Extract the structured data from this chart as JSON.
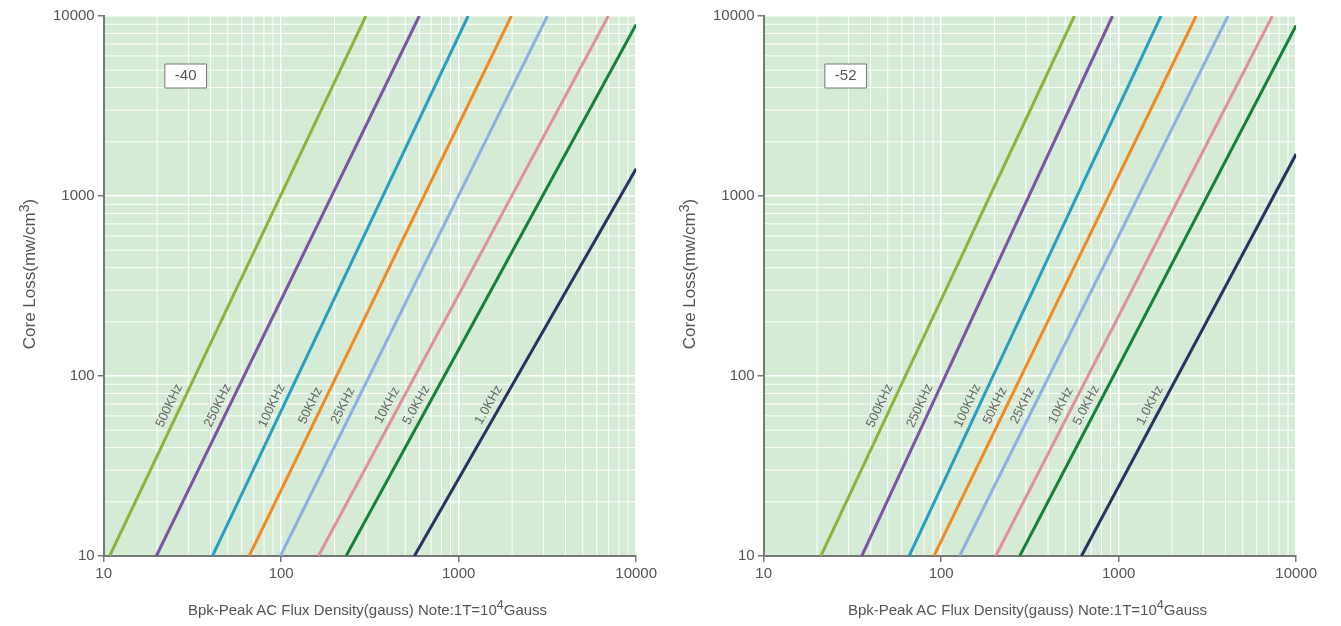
{
  "chart_data": [
    {
      "type": "line",
      "xlabel": "Bpk-Peak AC Flux Density(gauss) Note:1T=10$^{4}$Gauss",
      "ylabel": "Core Loss(mw/cm$^{3}$)",
      "annotations": [
        "-40"
      ],
      "log": "xy",
      "grid": true,
      "legend": false,
      "xlim": [
        10,
        10000
      ],
      "ylim": [
        10,
        10000
      ],
      "xticks": [
        10,
        100,
        1000,
        10000
      ],
      "yticks": [
        10,
        100,
        1000,
        10000
      ],
      "series": [
        {
          "name": "500KHz",
          "color": "#8db33a",
          "x": [
            10.8,
            300
          ],
          "values": [
            10,
            10000
          ]
        },
        {
          "name": "250KHz",
          "color": "#7a55a0",
          "x": [
            19.8,
            600
          ],
          "values": [
            10,
            10000
          ]
        },
        {
          "name": "100KHz",
          "color": "#2a9fc0",
          "x": [
            41,
            1130
          ],
          "values": [
            10,
            10000
          ]
        },
        {
          "name": "50KHz",
          "color": "#f08a24",
          "x": [
            66,
            1980
          ],
          "values": [
            10,
            10000
          ]
        },
        {
          "name": "25KHz",
          "color": "#8cb0e0",
          "x": [
            99,
            3160
          ],
          "values": [
            10,
            10000
          ]
        },
        {
          "name": "10KHz",
          "color": "#e0909a",
          "x": [
            162,
            6970
          ],
          "values": [
            10,
            10000
          ]
        },
        {
          "name": "5.0KHz",
          "color": "#17803a",
          "x": [
            232,
            10000
          ],
          "values": [
            10,
            8980
          ]
        },
        {
          "name": "1.0KHz",
          "color": "#28335f",
          "x": [
            563,
            10000
          ],
          "values": [
            10,
            1416
          ]
        }
      ]
    },
    {
      "type": "line",
      "xlabel": "Bpk-Peak AC Flux Density(gauss) Note:1T=10$^{4}$Gauss",
      "ylabel": "Core Loss(mw/cm$^{3}$)",
      "annotations": [
        "-52"
      ],
      "log": "xy",
      "grid": true,
      "legend": false,
      "xlim": [
        10,
        10000
      ],
      "ylim": [
        10,
        10000
      ],
      "xticks": [
        10,
        100,
        1000,
        10000
      ],
      "yticks": [
        10,
        100,
        1000,
        10000
      ],
      "series": [
        {
          "name": "500KHz",
          "color": "#8db33a",
          "x": [
            21,
            563
          ],
          "values": [
            10,
            10000
          ]
        },
        {
          "name": "250KHz",
          "color": "#7a55a0",
          "x": [
            35.7,
            923
          ],
          "values": [
            10,
            10000
          ]
        },
        {
          "name": "100KHz",
          "color": "#2a9fc0",
          "x": [
            66,
            1730
          ],
          "values": [
            10,
            10000
          ]
        },
        {
          "name": "50KHz",
          "color": "#f08a24",
          "x": [
            91,
            2730
          ],
          "values": [
            10,
            10000
          ]
        },
        {
          "name": "25KHz",
          "color": "#8cb0e0",
          "x": [
            127,
            4130
          ],
          "values": [
            10,
            10000
          ]
        },
        {
          "name": "10KHz",
          "color": "#e0909a",
          "x": [
            203,
            7340
          ],
          "values": [
            10,
            10000
          ]
        },
        {
          "name": "5.0KHz",
          "color": "#17803a",
          "x": [
            277,
            10000
          ],
          "values": [
            10,
            8870
          ]
        },
        {
          "name": "1.0KHz",
          "color": "#28335f",
          "x": [
            617,
            10000
          ],
          "values": [
            10,
            1710
          ]
        }
      ]
    }
  ]
}
